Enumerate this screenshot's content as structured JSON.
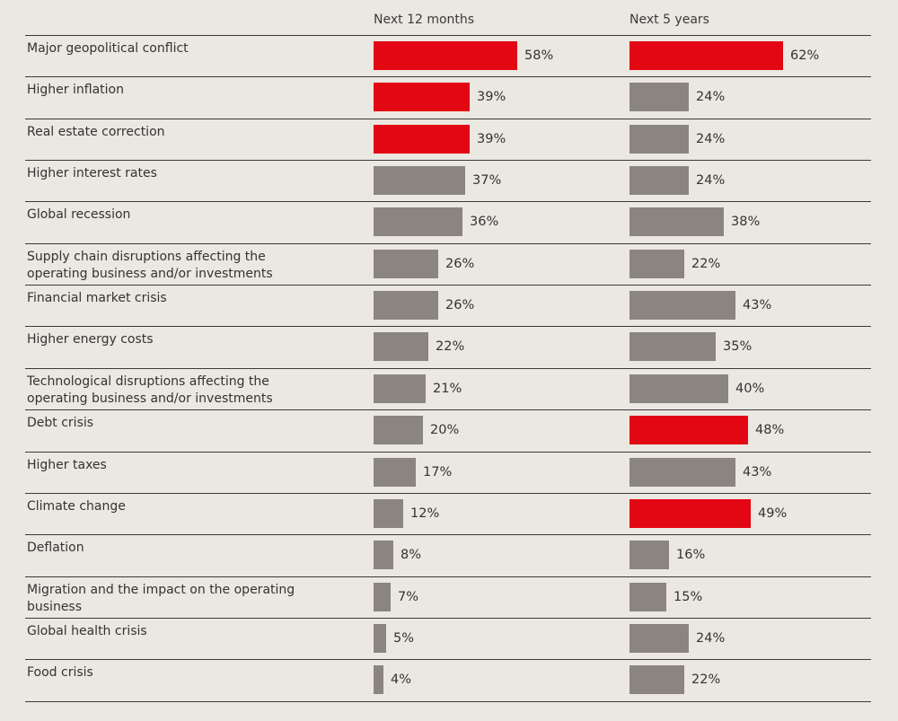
{
  "chart_data": {
    "type": "bar",
    "orientation": "horizontal",
    "colors": {
      "highlight": "#e30613",
      "default": "#8b8581",
      "background": "#ebe7e1"
    },
    "columns": [
      {
        "name": "Next 12 months"
      },
      {
        "name": "Next 5 years"
      }
    ],
    "rows": [
      {
        "label": "Major geopolitical conflict",
        "values": [
          58,
          62
        ],
        "labels": [
          "58%",
          "62%"
        ],
        "highlight": [
          true,
          true
        ]
      },
      {
        "label": "Higher inflation",
        "values": [
          39,
          24
        ],
        "labels": [
          "39%",
          "24%"
        ],
        "highlight": [
          true,
          false
        ]
      },
      {
        "label": "Real estate correction",
        "values": [
          39,
          24
        ],
        "labels": [
          "39%",
          "24%"
        ],
        "highlight": [
          true,
          false
        ]
      },
      {
        "label": "Higher interest rates",
        "values": [
          37,
          24
        ],
        "labels": [
          "37%",
          "24%"
        ],
        "highlight": [
          false,
          false
        ]
      },
      {
        "label": "Global recession",
        "values": [
          36,
          38
        ],
        "labels": [
          "36%",
          "38%"
        ],
        "highlight": [
          false,
          false
        ]
      },
      {
        "label": "Supply chain disruptions affecting the operating business and/or investments",
        "values": [
          26,
          22
        ],
        "labels": [
          "26%",
          "22%"
        ],
        "highlight": [
          false,
          false
        ]
      },
      {
        "label": "Financial market crisis",
        "values": [
          26,
          43
        ],
        "labels": [
          "26%",
          "43%"
        ],
        "highlight": [
          false,
          false
        ]
      },
      {
        "label": "Higher energy costs",
        "values": [
          22,
          35
        ],
        "labels": [
          "22%",
          "35%"
        ],
        "highlight": [
          false,
          false
        ]
      },
      {
        "label": "Technological disruptions affecting the operating business and/or investments",
        "values": [
          21,
          40
        ],
        "labels": [
          "21%",
          "40%"
        ],
        "highlight": [
          false,
          false
        ]
      },
      {
        "label": "Debt crisis",
        "values": [
          20,
          48
        ],
        "labels": [
          "20%",
          "48%"
        ],
        "highlight": [
          false,
          true
        ]
      },
      {
        "label": "Higher taxes",
        "values": [
          17,
          43
        ],
        "labels": [
          "17%",
          "43%"
        ],
        "highlight": [
          false,
          false
        ]
      },
      {
        "label": "Climate change",
        "values": [
          12,
          49
        ],
        "labels": [
          "12%",
          "49%"
        ],
        "highlight": [
          false,
          true
        ]
      },
      {
        "label": "Deflation",
        "values": [
          8,
          16
        ],
        "labels": [
          "8%",
          "16%"
        ],
        "highlight": [
          false,
          false
        ]
      },
      {
        "label": "Migration and the impact on the operating business",
        "values": [
          7,
          15
        ],
        "labels": [
          "7%",
          "15%"
        ],
        "highlight": [
          false,
          false
        ]
      },
      {
        "label": "Global health crisis",
        "values": [
          5,
          24
        ],
        "labels": [
          "5%",
          "24%"
        ],
        "highlight": [
          false,
          false
        ]
      },
      {
        "label": "Food crisis",
        "values": [
          4,
          22
        ],
        "labels": [
          "4%",
          "22%"
        ],
        "highlight": [
          false,
          false
        ]
      }
    ]
  }
}
